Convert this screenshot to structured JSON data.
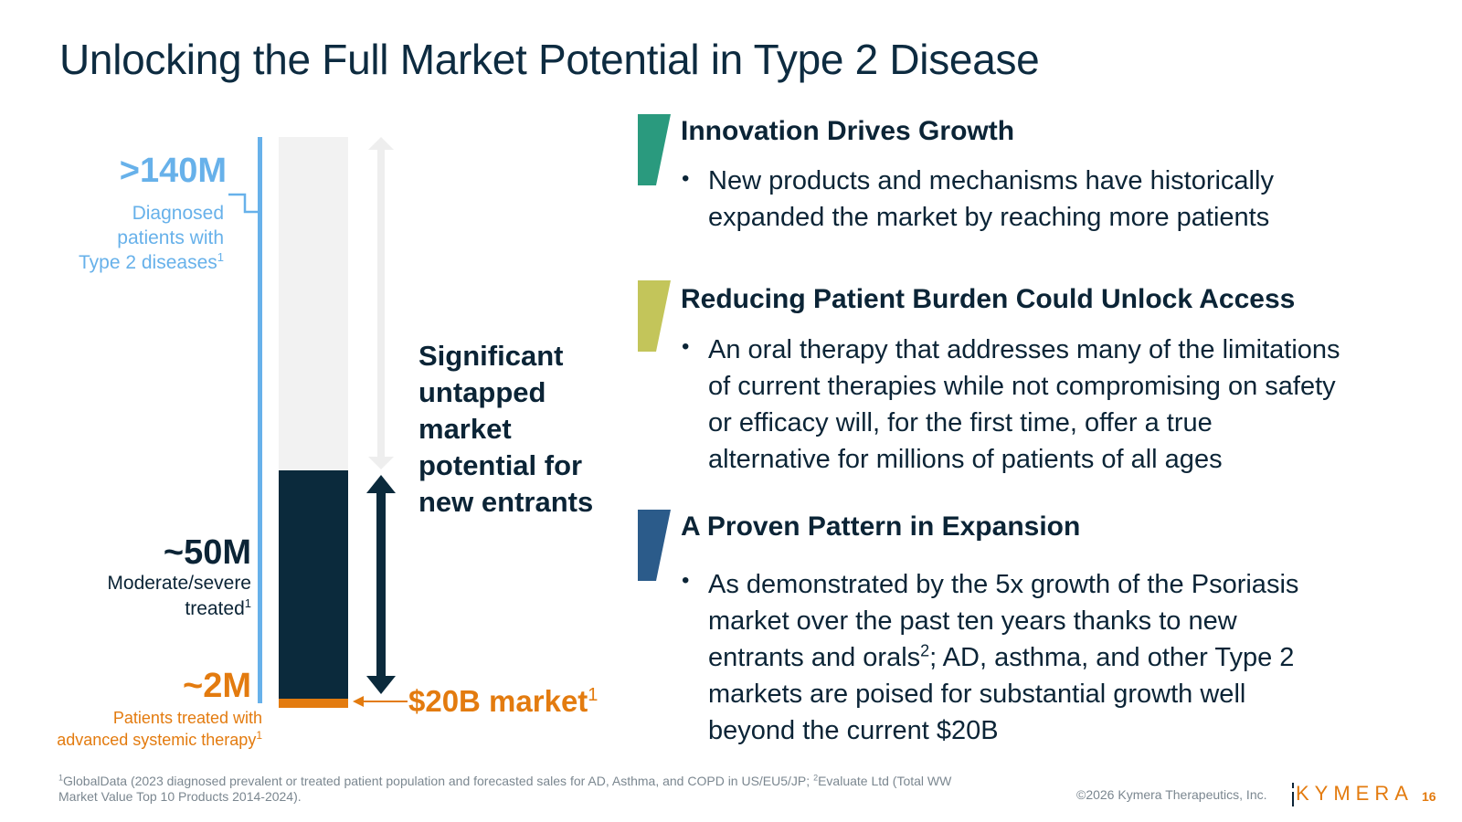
{
  "title": "Unlocking the Full Market Potential in Type 2 Disease",
  "left_graphic": {
    "diagnosed": {
      "value": ">140M",
      "desc_lines": [
        "Diagnosed",
        "patients with",
        "Type 2 diseases"
      ],
      "sup": "1"
    },
    "moderate": {
      "value": "~50M",
      "desc_lines": [
        "Moderate/severe",
        "treated"
      ],
      "sup": "1"
    },
    "advanced": {
      "value": "~2M",
      "desc_lines": [
        "Patients treated with",
        "advanced systemic therapy"
      ],
      "sup": "1"
    },
    "untapped_lines": [
      "Significant",
      "untapped",
      "market",
      "potential for",
      "new entrants"
    ],
    "market": {
      "label": "$20B market",
      "sup": "1"
    },
    "colors": {
      "blue": "#67b1ea",
      "navy": "#0b2a3c",
      "orange": "#e37b0f",
      "gray": "#f2f2f2"
    }
  },
  "sections": [
    {
      "heading": "Innovation Drives Growth",
      "flag_color": "#2a9a7e",
      "bullet_lines": [
        "New products and mechanisms have historically",
        "expanded the market by reaching more patients"
      ]
    },
    {
      "heading": "Reducing Patient Burden Could Unlock Access",
      "flag_color": "#c3c55a",
      "bullet_lines": [
        "An oral therapy that addresses many of the limitations",
        "of current therapies while not compromising on safety",
        "or efficacy will, for the first time, offer a true",
        "alternative for millions of patients of all ages"
      ]
    },
    {
      "heading": "A Proven Pattern in Expansion",
      "flag_color": "#2b5b8a",
      "bullet_line1": "As demonstrated by the 5x growth of the Psoriasis",
      "bullet_line2": "market over the past ten years thanks to new",
      "bullet_line3a": "entrants and orals",
      "bullet_line3_sup": "2",
      "bullet_line3b": "; AD, asthma, and other Type 2",
      "bullet_line4": "markets are poised for substantial growth well",
      "bullet_line5": "beyond the current $20B"
    }
  ],
  "footer": {
    "footnote_sup1": "1",
    "footnote_part1": "GlobalData (2023 diagnosed prevalent or treated patient population and forecasted sales for AD, Asthma, and COPD in US/EU5/JP; ",
    "footnote_sup2": "2",
    "footnote_part2": "Evaluate Ltd (Total WW",
    "footnote_line2": "Market Value Top 10 Products 2014-2024).",
    "copyright": "©2026 Kymera Therapeutics, Inc.",
    "logo": "KYMERA",
    "page_number": "16"
  }
}
